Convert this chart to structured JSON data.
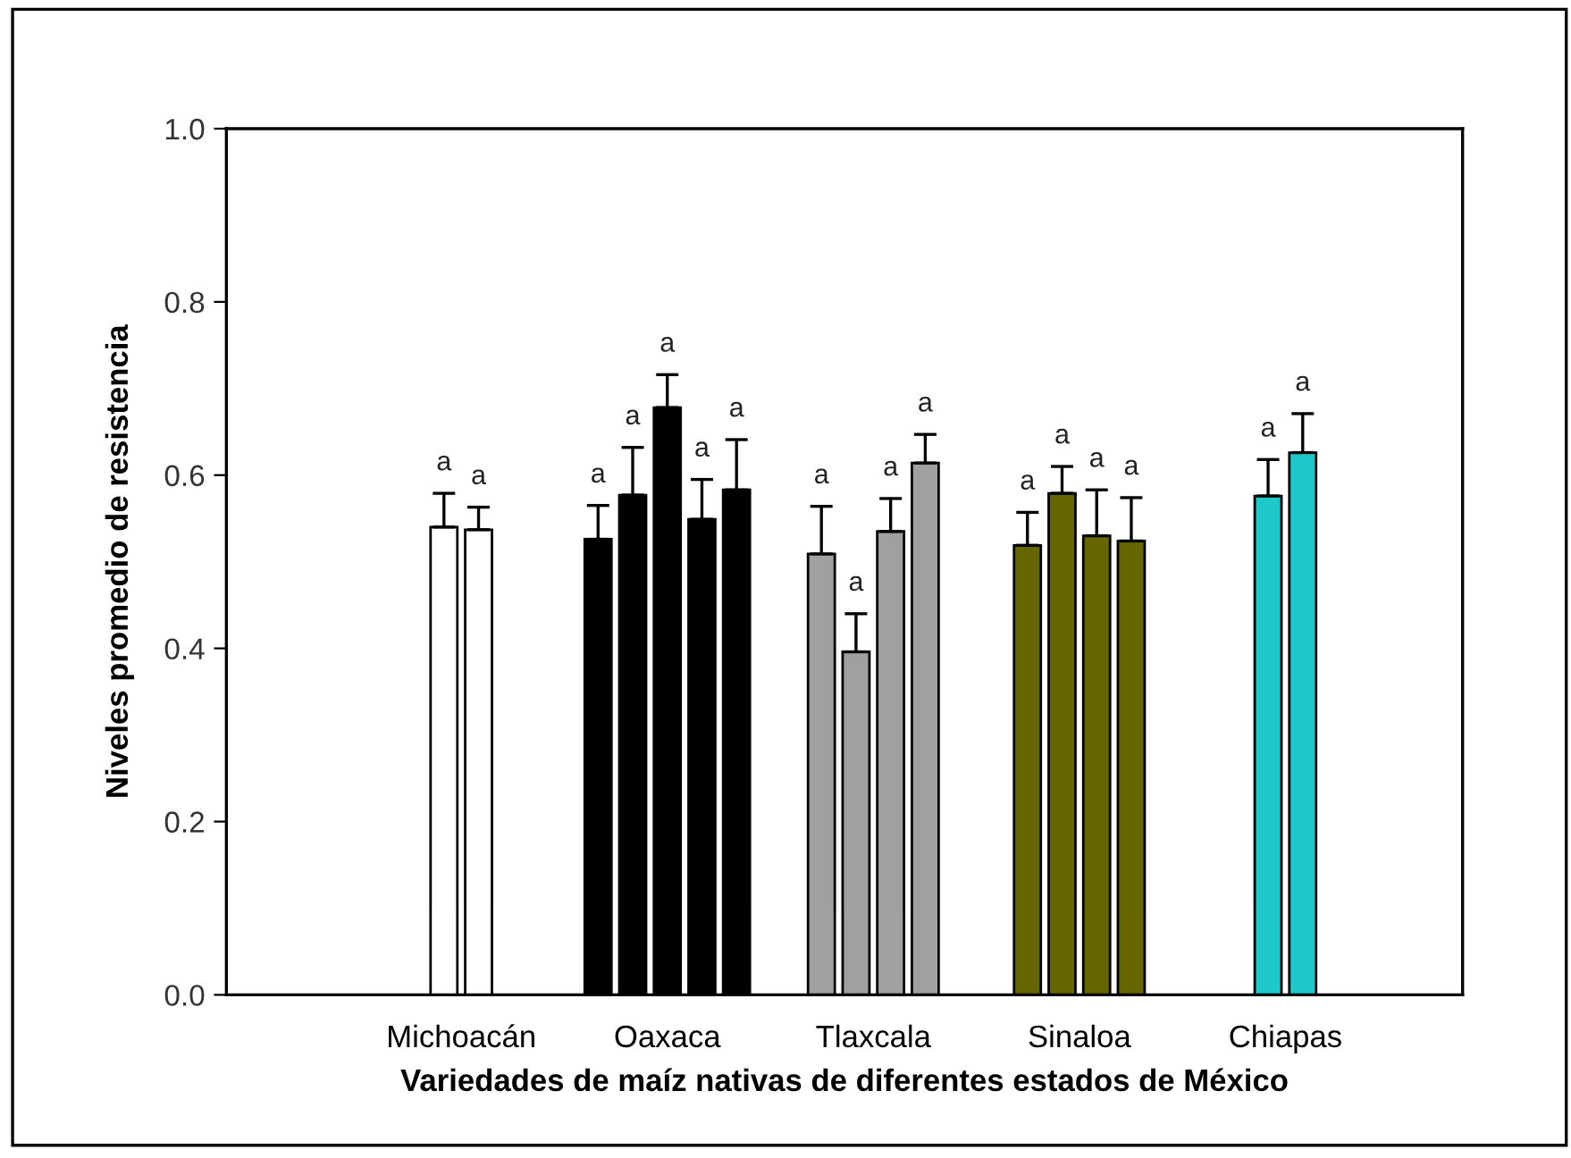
{
  "chart_data": {
    "type": "bar",
    "xlabel": "Variedades de maíz nativas de diferentes estados de México",
    "ylabel": "Niveles promedio de resistencia",
    "categories": [
      "Michoacán",
      "Oaxaca",
      "Tlaxcala",
      "Sinaloa",
      "Chiapas"
    ],
    "series": [
      {
        "colors": [
          "#ffffff",
          "#000000",
          "#a0a0a0",
          "#666600",
          "#1ec8c8"
        ],
        "values": [
          0.54,
          0.526,
          0.509,
          0.519,
          0.576
        ],
        "errors": [
          [
            0.54,
            0.579
          ],
          [
            0.526,
            0.565
          ],
          [
            0.509,
            0.564
          ],
          [
            0.519,
            0.557
          ],
          [
            0.576,
            0.618
          ]
        ],
        "value_labels": [
          "a",
          "a",
          "a",
          "a",
          "a"
        ]
      },
      {
        "colors": [
          "#ffffff",
          "#000000",
          "#a0a0a0",
          "#666600",
          "#1ec8c8"
        ],
        "values": [
          0.537,
          0.577,
          0.396,
          0.579,
          0.626
        ],
        "errors": [
          [
            0.537,
            0.563
          ],
          [
            0.577,
            0.632
          ],
          [
            0.396,
            0.44
          ],
          [
            0.579,
            0.61
          ],
          [
            0.626,
            0.671
          ]
        ],
        "value_labels": [
          "a",
          "a",
          "a",
          "a",
          "a"
        ]
      },
      {
        "colors": [
          "#ffffff",
          "#000000",
          "#a0a0a0",
          "#666600",
          "#1ec8c8"
        ],
        "values": [
          null,
          0.678,
          0.535,
          0.53,
          null
        ],
        "errors": [
          null,
          [
            0.678,
            0.716
          ],
          [
            0.535,
            0.573
          ],
          [
            0.53,
            0.583
          ],
          null
        ],
        "value_labels": [
          null,
          "a",
          "a",
          "a",
          null
        ]
      },
      {
        "colors": [
          "#ffffff",
          "#000000",
          "#a0a0a0",
          "#666600",
          "#1ec8c8"
        ],
        "values": [
          null,
          0.549,
          0.614,
          0.524,
          null
        ],
        "errors": [
          null,
          [
            0.549,
            0.595
          ],
          [
            0.614,
            0.647
          ],
          [
            0.524,
            0.574
          ],
          null
        ],
        "value_labels": [
          null,
          "a",
          "a",
          "a",
          null
        ]
      },
      {
        "colors": [
          "#ffffff",
          "#000000",
          "#a0a0a0",
          "#666600",
          "#1ec8c8"
        ],
        "values": [
          null,
          0.583,
          null,
          null,
          null
        ],
        "errors": [
          null,
          [
            0.583,
            0.641
          ],
          null,
          null,
          null
        ],
        "value_labels": [
          null,
          "a",
          null,
          null,
          null
        ]
      }
    ],
    "ylim": [
      0,
      1.0
    ],
    "yticks": [
      {
        "value": 0,
        "label": "0.0"
      },
      0.2,
      0.4,
      0.6,
      0.8,
      {
        "value": 1.0,
        "label": "1.0"
      }
    ]
  }
}
